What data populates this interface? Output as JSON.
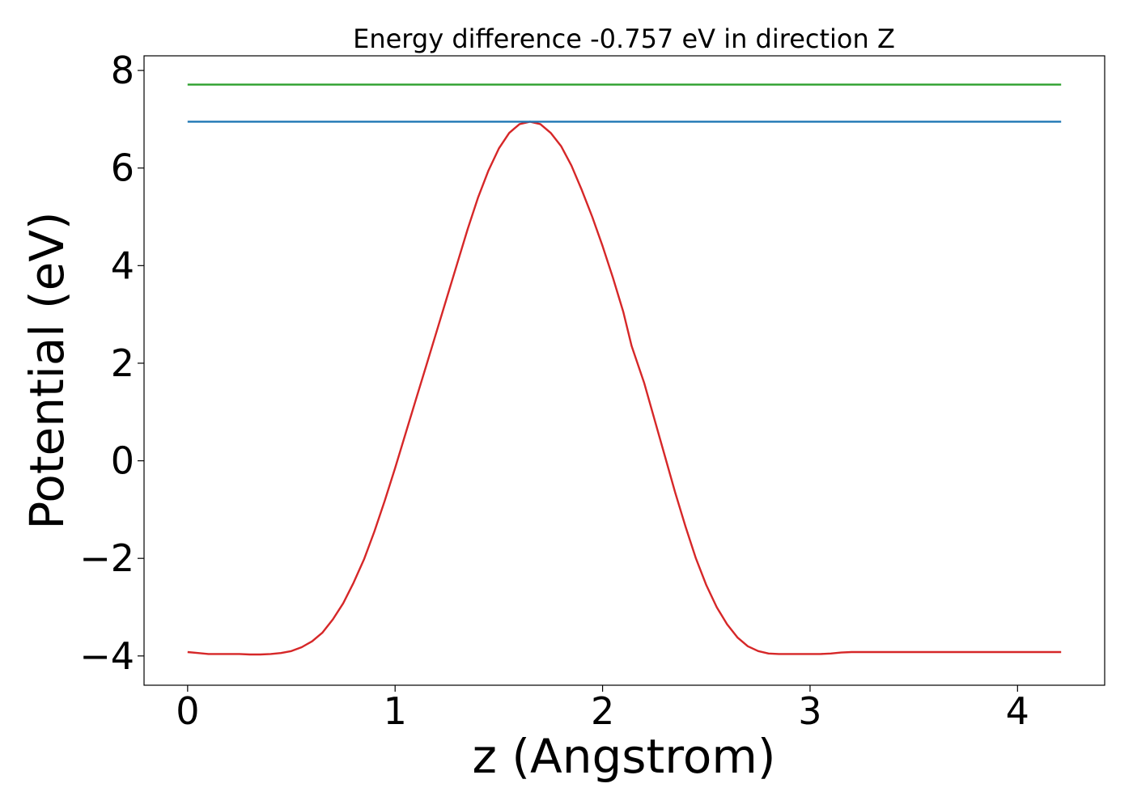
{
  "chart_data": {
    "type": "line",
    "title": "Energy difference -0.757 eV in direction Z",
    "xlabel": "z (Angstrom)",
    "ylabel": "Potential (eV)",
    "xlim": [
      -0.21,
      4.42
    ],
    "ylim": [
      -4.6,
      8.3
    ],
    "xticks": [
      0,
      1,
      2,
      3,
      4
    ],
    "xtick_labels": [
      "0",
      "1",
      "2",
      "3",
      "4"
    ],
    "yticks": [
      -4,
      -2,
      0,
      2,
      4,
      6,
      8
    ],
    "ytick_labels": [
      "−4",
      "−2",
      "0",
      "2",
      "4",
      "6",
      "8"
    ],
    "grid": false,
    "series": [
      {
        "color": "#d62728",
        "x": [
          0,
          0.05,
          0.1,
          0.15,
          0.2,
          0.25,
          0.3,
          0.35,
          0.4,
          0.45,
          0.5,
          0.55,
          0.6,
          0.65,
          0.7,
          0.75,
          0.8,
          0.85,
          0.9,
          0.95,
          1.0,
          1.05,
          1.1,
          1.15,
          1.2,
          1.25,
          1.3,
          1.35,
          1.4,
          1.45,
          1.5,
          1.55,
          1.6,
          1.65,
          1.7,
          1.75,
          1.8,
          1.85,
          1.9,
          1.95,
          2.0,
          2.05,
          2.1,
          2.14,
          2.2,
          2.25,
          2.3,
          2.35,
          2.4,
          2.45,
          2.5,
          2.55,
          2.6,
          2.65,
          2.7,
          2.75,
          2.8,
          2.85,
          2.9,
          2.95,
          3.0,
          3.05,
          3.1,
          3.15,
          3.2,
          3.25,
          3.3,
          3.35,
          3.4,
          3.45,
          3.5,
          3.55,
          3.6,
          3.65,
          3.7,
          3.75,
          3.8,
          3.85,
          3.9,
          3.95,
          4.0,
          4.05,
          4.1,
          4.15,
          4.21
        ],
        "y": [
          -3.92,
          -3.94,
          -3.96,
          -3.96,
          -3.96,
          -3.96,
          -3.97,
          -3.97,
          -3.96,
          -3.94,
          -3.9,
          -3.82,
          -3.7,
          -3.52,
          -3.25,
          -2.92,
          -2.5,
          -2.02,
          -1.45,
          -0.82,
          -0.15,
          0.55,
          1.25,
          1.95,
          2.65,
          3.35,
          4.05,
          4.75,
          5.4,
          5.95,
          6.4,
          6.72,
          6.9,
          6.95,
          6.9,
          6.72,
          6.45,
          6.05,
          5.55,
          5.0,
          4.4,
          3.75,
          3.05,
          2.35,
          1.6,
          0.85,
          0.1,
          -0.65,
          -1.35,
          -2.0,
          -2.55,
          -3.0,
          -3.35,
          -3.62,
          -3.8,
          -3.9,
          -3.95,
          -3.96,
          -3.96,
          -3.96,
          -3.96,
          -3.96,
          -3.95,
          -3.93,
          -3.92,
          -3.92,
          -3.92,
          -3.92,
          -3.92,
          -3.92,
          -3.92,
          -3.92,
          -3.92,
          -3.92,
          -3.92,
          -3.92,
          -3.92,
          -3.92,
          -3.92,
          -3.92,
          -3.92,
          -3.92,
          -3.92,
          -3.92,
          -3.92
        ]
      },
      {
        "color": "#1f77b4",
        "x": [
          0,
          4.21
        ],
        "y": [
          6.95,
          6.95
        ]
      },
      {
        "color": "#2ca02c",
        "x": [
          0,
          4.21
        ],
        "y": [
          7.71,
          7.71
        ]
      }
    ]
  }
}
